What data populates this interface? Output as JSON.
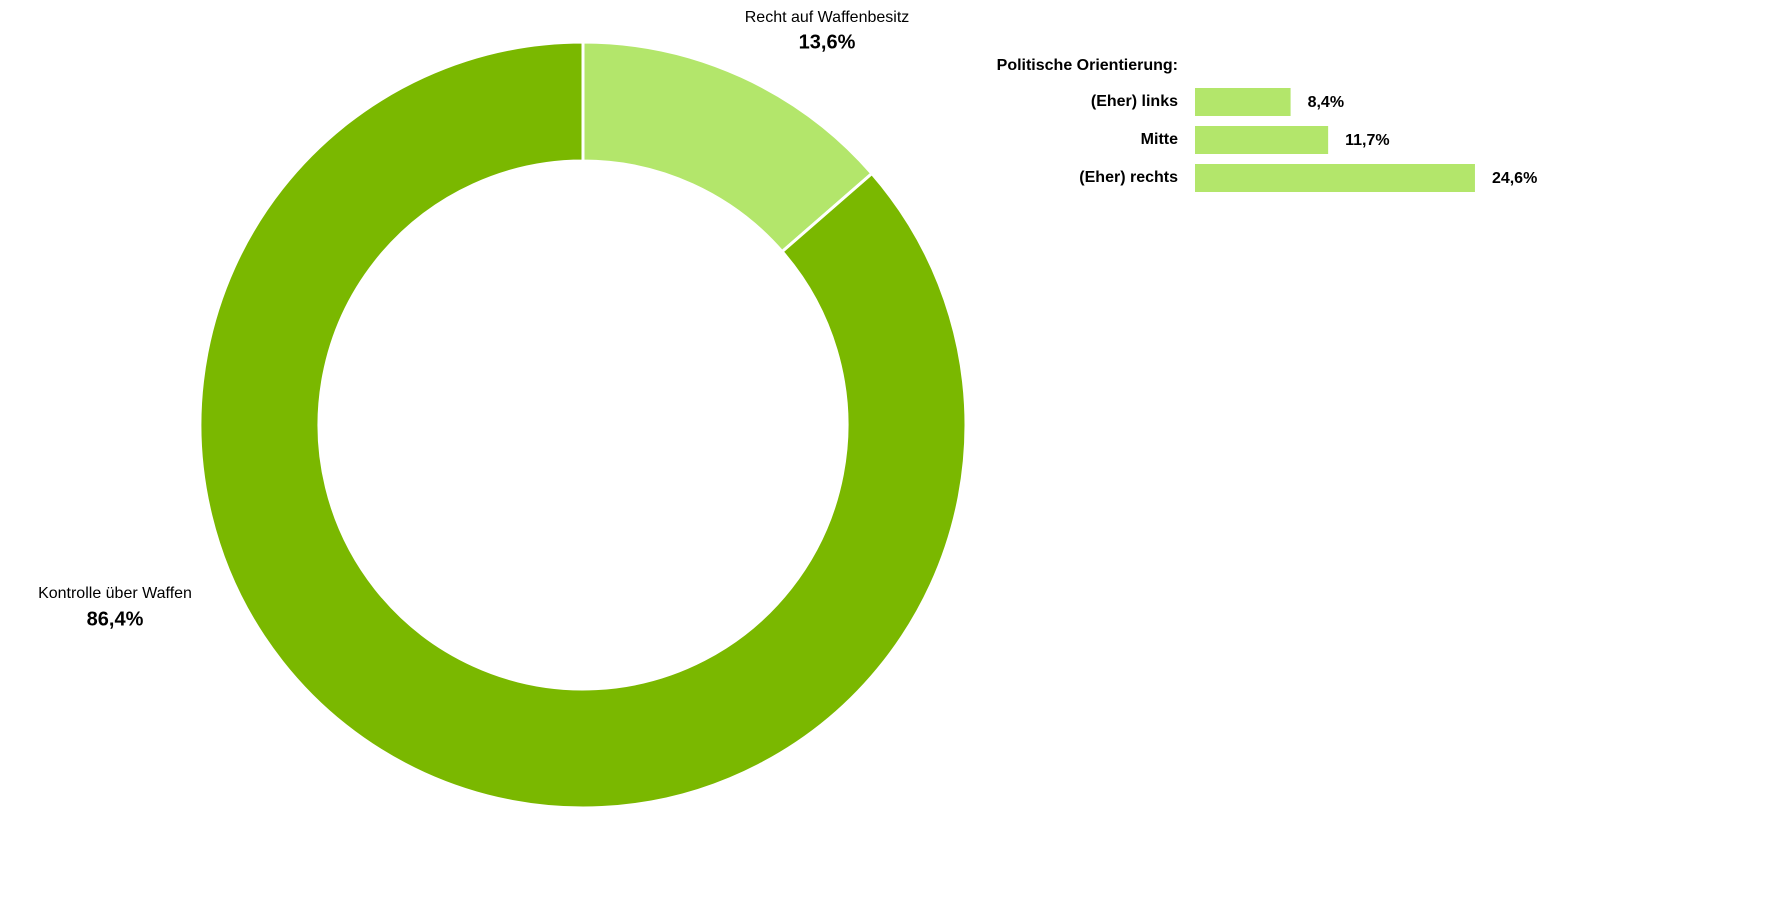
{
  "chart_data": [
    {
      "type": "pie",
      "categories": [
        "Recht auf Waffenbesitz",
        "Kontrolle über Waffen"
      ],
      "values": [
        13.6,
        86.4
      ],
      "value_labels": [
        "13,6%",
        "86,4%"
      ],
      "colors": [
        "#b3e66b",
        "#7ab800"
      ]
    },
    {
      "type": "bar",
      "title": "Politische Orientierung:",
      "categories": [
        "(Eher) links",
        "Mitte",
        "(Eher) rechts"
      ],
      "values": [
        8.4,
        11.7,
        24.6
      ],
      "value_labels": [
        "8,4%",
        "11,7%",
        "24,6%"
      ],
      "color": "#b3e66b",
      "xlim": [
        0,
        100
      ]
    }
  ]
}
